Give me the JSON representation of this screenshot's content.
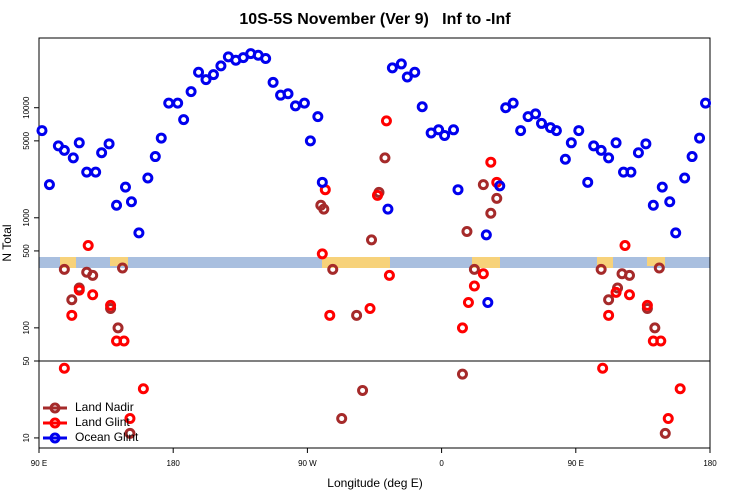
{
  "chart_data": {
    "type": "scatter",
    "title": "10S-5S November (Ver 9)   Inf to -Inf",
    "x_label": "Longitude (deg E)",
    "y_label": "N Total",
    "log_y": true,
    "xlim": [
      90,
      540
    ],
    "ylim": [
      8.1,
      43000
    ],
    "xticks": [
      {
        "value": 90,
        "label": "90 E"
      },
      180,
      {
        "value": 270,
        "label": "90 W"
      },
      {
        "value": 360,
        "label": "0"
      },
      {
        "value": 450,
        "label": "90 E"
      },
      {
        "value": 540,
        "label": "180"
      }
    ],
    "yticks": [
      10,
      50,
      100,
      500,
      1000,
      5000,
      10000
    ],
    "hline": 50,
    "legend": "lower left",
    "series": [
      {
        "name": "Land Nadir",
        "color": "#a52a2a",
        "x": [
          107,
          112,
          117,
          122,
          126,
          138,
          143,
          146,
          151,
          279,
          281,
          287,
          293,
          303,
          307,
          313,
          318,
          322,
          374,
          377,
          382,
          388,
          393,
          397,
          467,
          472,
          478,
          481,
          486,
          498,
          503,
          506,
          510
        ],
        "values": [
          340,
          180,
          230,
          320,
          300,
          150,
          100,
          350,
          11,
          1300,
          1200,
          340,
          15,
          130,
          27,
          630,
          1700,
          3500,
          38,
          750,
          340,
          2000,
          1100,
          1500,
          340,
          180,
          230,
          310,
          300,
          150,
          100,
          350,
          11
        ]
      },
      {
        "name": "Land Glint",
        "color": "#ff0000",
        "x": [
          123,
          112,
          117,
          126,
          138,
          142,
          147,
          160,
          151,
          107,
          280,
          282,
          285,
          312,
          317,
          323,
          325,
          374,
          378,
          382,
          388,
          393,
          397,
          468,
          472,
          477,
          483,
          486,
          498,
          502,
          507,
          520,
          512
        ],
        "values": [
          560,
          130,
          220,
          200,
          160,
          76,
          76,
          28,
          15,
          43,
          470,
          1800,
          130,
          150,
          1600,
          7600,
          300,
          100,
          170,
          240,
          310,
          3200,
          2100,
          43,
          130,
          210,
          560,
          200,
          160,
          76,
          76,
          28,
          15
        ]
      },
      {
        "name": "Ocean Glint",
        "color": "#0000ee",
        "x": [
          92,
          97,
          103,
          107,
          113,
          117,
          122,
          128,
          132,
          137,
          142,
          148,
          152,
          157,
          163,
          168,
          172,
          177,
          183,
          187,
          192,
          197,
          202,
          207,
          212,
          217,
          222,
          227,
          232,
          237,
          242,
          247,
          252,
          257,
          262,
          268,
          272,
          277,
          280,
          324,
          327,
          333,
          337,
          342,
          347,
          353,
          358,
          362,
          368,
          371,
          390,
          391,
          399,
          403,
          408,
          413,
          418,
          423,
          427,
          433,
          437,
          443,
          447,
          452,
          458,
          462,
          467,
          472,
          477,
          482,
          487,
          492,
          497,
          502,
          508,
          513,
          517,
          523,
          528,
          533,
          537
        ],
        "values": [
          6200,
          2000,
          4500,
          4100,
          3500,
          4800,
          2600,
          2600,
          3900,
          4700,
          1300,
          1900,
          1400,
          730,
          2300,
          3600,
          5300,
          11000,
          11000,
          7800,
          14000,
          21000,
          18000,
          20000,
          24000,
          29000,
          27000,
          28500,
          31000,
          30000,
          28000,
          17000,
          13000,
          13400,
          10400,
          11000,
          5000,
          8300,
          2100,
          1200,
          23000,
          25000,
          19000,
          21000,
          10200,
          5900,
          6300,
          5600,
          6300,
          1800,
          700,
          170,
          1950,
          10000,
          11000,
          6200,
          8300,
          8800,
          7200,
          6600,
          6200,
          3400,
          4800,
          6200,
          2100,
          4500,
          4100,
          3500,
          4800,
          2600,
          2600,
          3900,
          4700,
          1300,
          1900,
          1400,
          730,
          2300,
          3600,
          5300,
          11000
        ]
      }
    ]
  }
}
